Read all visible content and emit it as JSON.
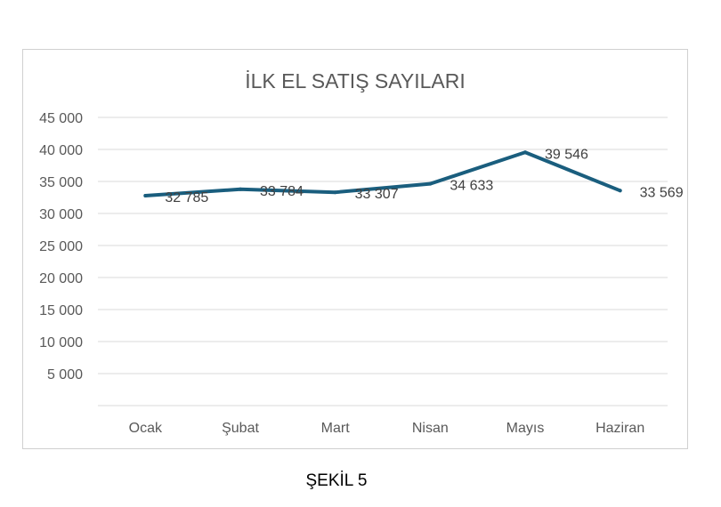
{
  "chart_data": {
    "type": "line",
    "title": "İLK EL SATIŞ SAYILARI",
    "categories": [
      "Ocak",
      "Şubat",
      "Mart",
      "Nisan",
      "Mayıs",
      "Haziran"
    ],
    "series": [
      {
        "values": [
          32785,
          33784,
          33307,
          34633,
          39546,
          33569
        ],
        "labels": [
          "32 785",
          "33 784",
          "33 307",
          "34 633",
          "39 546",
          "33 569"
        ]
      }
    ],
    "ylim": [
      0,
      45000
    ],
    "yticks": [
      5000,
      10000,
      15000,
      20000,
      25000,
      30000,
      35000,
      40000,
      45000
    ],
    "ytick_labels": [
      "5 000",
      "10 000",
      "15 000",
      "20 000",
      "25 000",
      "30 000",
      "35 000",
      "40 000",
      "45 000"
    ],
    "grid": true,
    "legend": "none",
    "colors": {
      "line": "#1a5e7e",
      "grid": "#d9d9d9",
      "text": "#595959",
      "label": "#404040"
    }
  },
  "caption": "ŞEKİL 5"
}
